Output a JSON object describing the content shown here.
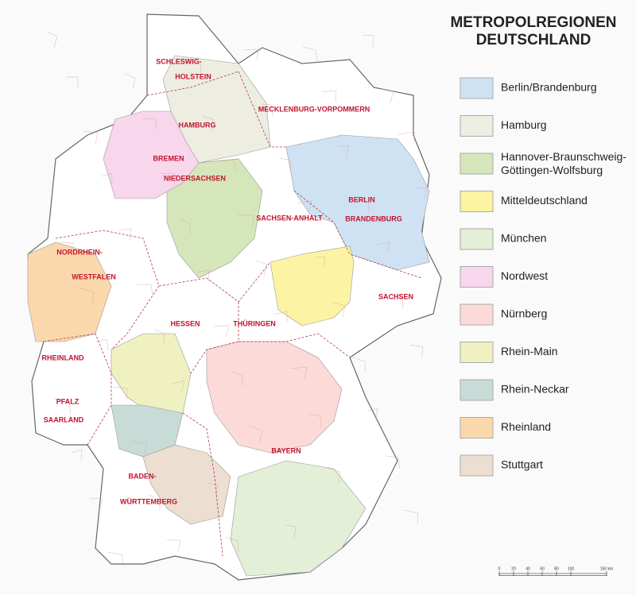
{
  "title": [
    "METROPOLREGIONEN",
    "DEUTSCHLAND"
  ],
  "legend": [
    {
      "name": "Berlin/Brandenburg",
      "color": "#cfe2f3"
    },
    {
      "name": "Hamburg",
      "color": "#eeede2"
    },
    {
      "name": "Hannover-Braunschweig-\nGöttingen-Wolfsburg",
      "color": "#d5e6bb"
    },
    {
      "name": "Mitteldeutschland",
      "color": "#fcf4a3"
    },
    {
      "name": "München",
      "color": "#e3efd6"
    },
    {
      "name": "Nordwest",
      "color": "#f8d6ec"
    },
    {
      "name": "Nürnberg",
      "color": "#fbdad7"
    },
    {
      "name": "Rhein-Main",
      "color": "#eff1c1"
    },
    {
      "name": "Rhein-Neckar",
      "color": "#c8dcd7"
    },
    {
      "name": "Rheinland",
      "color": "#fbd8ab"
    },
    {
      "name": "Stuttgart",
      "color": "#ecdfd1"
    }
  ],
  "map_labels": [
    "SCHLESWIG-",
    "HOLSTEIN",
    "MECKLENBURG-VORPOMMERN",
    "HAMBURG",
    "BREMEN",
    "NIEDERSACHSEN",
    "BERLIN",
    "BRANDENBURG",
    "SACHSEN-ANHALT",
    "NORDRHEIN-",
    "WESTFALEN",
    "HESSEN",
    "THÜRINGEN",
    "SACHSEN",
    "RHEINLAND",
    "PFALZ",
    "SAARLAND",
    "BAYERN",
    "BADEN-",
    "WÜRTTEMBERG"
  ],
  "scale": {
    "ticks": [
      0,
      20,
      40,
      60,
      80,
      100,
      {
        "value": 150,
        "label": "150 km"
      }
    ]
  }
}
